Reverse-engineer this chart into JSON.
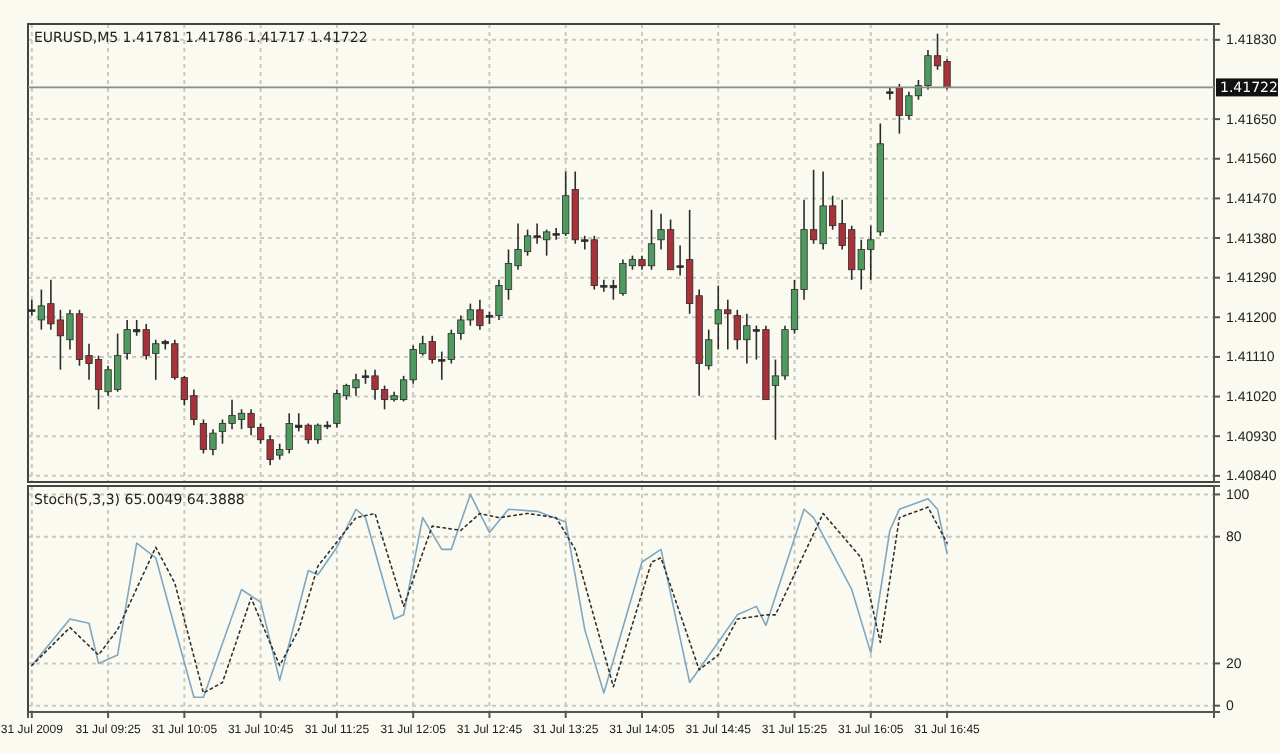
{
  "chart_data": [
    {
      "type": "candlestick",
      "title": "EURUSD,M5 1.41781 1.41786 1.41717 1.41722",
      "grid": true,
      "tick_labels": "y",
      "xlim": [
        "2009-07-31T08:43",
        "2009-07-31T19:05"
      ],
      "xticks": [
        {
          "value": "2009-07-31T08:45",
          "label": null
        },
        {
          "value": "2009-07-31T09:25",
          "label": null
        },
        {
          "value": "2009-07-31T10:05",
          "label": null
        },
        {
          "value": "2009-07-31T10:45",
          "label": null
        },
        {
          "value": "2009-07-31T11:25",
          "label": null
        },
        {
          "value": "2009-07-31T12:05",
          "label": null
        },
        {
          "value": "2009-07-31T12:45",
          "label": null
        },
        {
          "value": "2009-07-31T13:25",
          "label": null
        },
        {
          "value": "2009-07-31T14:05",
          "label": null
        },
        {
          "value": "2009-07-31T14:45",
          "label": null
        },
        {
          "value": "2009-07-31T15:25",
          "label": null
        },
        {
          "value": "2009-07-31T16:05",
          "label": null
        },
        {
          "value": "2009-07-31T16:45",
          "label": null
        }
      ],
      "ylim": [
        1.40826,
        1.41866
      ],
      "yticks": [
        {
          "value": 1.4183,
          "label": "1.41830"
        },
        {
          "value": 1.4165,
          "label": "1.41650"
        },
        {
          "value": 1.4156,
          "label": "1.41560"
        },
        {
          "value": 1.4147,
          "label": "1.41470"
        },
        {
          "value": 1.4138,
          "label": "1.41380"
        },
        {
          "value": 1.4129,
          "label": "1.41290"
        },
        {
          "value": 1.412,
          "label": "1.41200"
        },
        {
          "value": 1.4111,
          "label": "1.41110"
        },
        {
          "value": 1.4102,
          "label": "1.41020"
        },
        {
          "value": 1.4093,
          "label": "1.40930"
        },
        {
          "value": 1.4084,
          "label": "1.40840"
        }
      ],
      "ref_lines": [
        {
          "axis": "y",
          "value": 1.41722,
          "label": "1.41722",
          "color": "#8c8c8c"
        }
      ],
      "x": [
        "2009-07-31T08:45",
        "2009-07-31T08:50",
        "2009-07-31T08:55",
        "2009-07-31T09:00",
        "2009-07-31T09:05",
        "2009-07-31T09:10",
        "2009-07-31T09:15",
        "2009-07-31T09:20",
        "2009-07-31T09:25",
        "2009-07-31T09:30",
        "2009-07-31T09:35",
        "2009-07-31T09:40",
        "2009-07-31T09:45",
        "2009-07-31T09:50",
        "2009-07-31T09:55",
        "2009-07-31T10:00",
        "2009-07-31T10:05",
        "2009-07-31T10:10",
        "2009-07-31T10:15",
        "2009-07-31T10:20",
        "2009-07-31T10:25",
        "2009-07-31T10:30",
        "2009-07-31T10:35",
        "2009-07-31T10:40",
        "2009-07-31T10:45",
        "2009-07-31T10:50",
        "2009-07-31T10:55",
        "2009-07-31T11:00",
        "2009-07-31T11:05",
        "2009-07-31T11:10",
        "2009-07-31T11:15",
        "2009-07-31T11:20",
        "2009-07-31T11:25",
        "2009-07-31T11:30",
        "2009-07-31T11:35",
        "2009-07-31T11:40",
        "2009-07-31T11:45",
        "2009-07-31T11:50",
        "2009-07-31T11:55",
        "2009-07-31T12:00",
        "2009-07-31T12:05",
        "2009-07-31T12:10",
        "2009-07-31T12:15",
        "2009-07-31T12:20",
        "2009-07-31T12:25",
        "2009-07-31T12:30",
        "2009-07-31T12:35",
        "2009-07-31T12:40",
        "2009-07-31T12:45",
        "2009-07-31T12:50",
        "2009-07-31T12:55",
        "2009-07-31T13:00",
        "2009-07-31T13:05",
        "2009-07-31T13:10",
        "2009-07-31T13:15",
        "2009-07-31T13:20",
        "2009-07-31T13:25",
        "2009-07-31T13:30",
        "2009-07-31T13:35",
        "2009-07-31T13:40",
        "2009-07-31T13:45",
        "2009-07-31T13:50",
        "2009-07-31T13:55",
        "2009-07-31T14:00",
        "2009-07-31T14:05",
        "2009-07-31T14:10",
        "2009-07-31T14:15",
        "2009-07-31T14:20",
        "2009-07-31T14:25",
        "2009-07-31T14:30",
        "2009-07-31T14:35",
        "2009-07-31T14:40",
        "2009-07-31T14:45",
        "2009-07-31T14:50",
        "2009-07-31T14:55",
        "2009-07-31T15:00",
        "2009-07-31T15:05",
        "2009-07-31T15:10",
        "2009-07-31T15:15",
        "2009-07-31T15:20",
        "2009-07-31T15:25",
        "2009-07-31T15:30",
        "2009-07-31T15:35",
        "2009-07-31T15:40",
        "2009-07-31T15:45",
        "2009-07-31T15:50",
        "2009-07-31T15:55",
        "2009-07-31T16:00",
        "2009-07-31T16:05",
        "2009-07-31T16:10",
        "2009-07-31T16:15",
        "2009-07-31T16:20",
        "2009-07-31T16:25",
        "2009-07-31T16:30",
        "2009-07-31T16:35",
        "2009-07-31T16:40",
        "2009-07-31T16:45"
      ],
      "ohlc": [
        [
          1.41217,
          1.4124,
          1.41204,
          1.41217
        ],
        [
          1.41194,
          1.41263,
          1.41172,
          1.41226
        ],
        [
          1.41231,
          1.41285,
          1.41172,
          1.41185
        ],
        [
          1.41194,
          1.41217,
          1.41081,
          1.41158
        ],
        [
          1.41149,
          1.41217,
          1.41127,
          1.41208
        ],
        [
          1.41208,
          1.41217,
          1.4109,
          1.41104
        ],
        [
          1.41113,
          1.4114,
          1.41058,
          1.41095
        ],
        [
          1.41104,
          1.41113,
          1.40991,
          1.41036
        ],
        [
          1.41031,
          1.4109,
          1.41022,
          1.41081
        ],
        [
          1.41036,
          1.41163,
          1.41031,
          1.41113
        ],
        [
          1.41118,
          1.41194,
          1.41104,
          1.41172
        ],
        [
          1.41172,
          1.41194,
          1.41158,
          1.41167
        ],
        [
          1.41172,
          1.41185,
          1.41104,
          1.41113
        ],
        [
          1.41118,
          1.41149,
          1.41058,
          1.4114
        ],
        [
          1.41145,
          1.41149,
          1.41127,
          1.4114
        ],
        [
          1.4114,
          1.41149,
          1.41058,
          1.41063
        ],
        [
          1.41063,
          1.41067,
          1.41,
          1.41013
        ],
        [
          1.41022,
          1.41036,
          1.40955,
          1.40968
        ],
        [
          1.40959,
          1.40968,
          1.40891,
          1.409
        ],
        [
          1.409,
          1.40946,
          1.40887,
          1.40937
        ],
        [
          1.40941,
          1.40968,
          1.40913,
          1.40959
        ],
        [
          1.40959,
          1.41013,
          1.40946,
          1.40977
        ],
        [
          1.40968,
          1.40991,
          1.40946,
          1.40982
        ],
        [
          1.40982,
          1.40991,
          1.40932,
          1.4095
        ],
        [
          1.4095,
          1.40959,
          1.40913,
          1.40922
        ],
        [
          1.40922,
          1.40932,
          1.40864,
          1.40877
        ],
        [
          1.40887,
          1.40913,
          1.40877,
          1.409
        ],
        [
          1.409,
          1.40982,
          1.40891,
          1.40959
        ],
        [
          1.40955,
          1.40982,
          1.40941,
          1.4095
        ],
        [
          1.40955,
          1.40959,
          1.40913,
          1.40922
        ],
        [
          1.40922,
          1.40959,
          1.40913,
          1.40955
        ],
        [
          1.40955,
          1.40964,
          1.40946,
          1.40955
        ],
        [
          1.40959,
          1.41036,
          1.4095,
          1.41027
        ],
        [
          1.41022,
          1.41049,
          1.41013,
          1.41045
        ],
        [
          1.4104,
          1.41072,
          1.41022,
          1.41058
        ],
        [
          1.41063,
          1.41081,
          1.41049,
          1.41067
        ],
        [
          1.41067,
          1.41081,
          1.41013,
          1.41036
        ],
        [
          1.41036,
          1.41045,
          1.40991,
          1.41013
        ],
        [
          1.41013,
          1.41031,
          1.41009,
          1.41022
        ],
        [
          1.41013,
          1.41067,
          1.41009,
          1.41058
        ],
        [
          1.41058,
          1.41136,
          1.41049,
          1.41127
        ],
        [
          1.41118,
          1.41158,
          1.41113,
          1.4114
        ],
        [
          1.41145,
          1.41158,
          1.41095,
          1.41104
        ],
        [
          1.41104,
          1.41122,
          1.41058,
          1.41104
        ],
        [
          1.41104,
          1.41172,
          1.41095,
          1.41163
        ],
        [
          1.41163,
          1.41204,
          1.41149,
          1.41194
        ],
        [
          1.41194,
          1.41231,
          1.41181,
          1.41217
        ],
        [
          1.41217,
          1.4124,
          1.41172,
          1.41181
        ],
        [
          1.41204,
          1.41213,
          1.41185,
          1.41204
        ],
        [
          1.41204,
          1.41285,
          1.41194,
          1.41272
        ],
        [
          1.41263,
          1.41354,
          1.4124,
          1.41322
        ],
        [
          1.41317,
          1.41413,
          1.41308,
          1.41354
        ],
        [
          1.41349,
          1.41399,
          1.4134,
          1.41385
        ],
        [
          1.41385,
          1.41413,
          1.41367,
          1.41385
        ],
        [
          1.41376,
          1.41399,
          1.4134,
          1.41394
        ],
        [
          1.4139,
          1.41403,
          1.41376,
          1.4139
        ],
        [
          1.4139,
          1.41531,
          1.41385,
          1.41476
        ],
        [
          1.4149,
          1.41531,
          1.41367,
          1.41376
        ],
        [
          1.41376,
          1.41385,
          1.41354,
          1.41376
        ],
        [
          1.41376,
          1.41385,
          1.41263,
          1.41272
        ],
        [
          1.41272,
          1.41285,
          1.41258,
          1.41272
        ],
        [
          1.41272,
          1.41285,
          1.4124,
          1.41267
        ],
        [
          1.41254,
          1.41331,
          1.41249,
          1.41322
        ],
        [
          1.41317,
          1.4134,
          1.41308,
          1.41331
        ],
        [
          1.41331,
          1.4134,
          1.41308,
          1.41317
        ],
        [
          1.41317,
          1.41444,
          1.41308,
          1.41367
        ],
        [
          1.41376,
          1.41435,
          1.41354,
          1.41399
        ],
        [
          1.41399,
          1.41422,
          1.41308,
          1.41308
        ],
        [
          1.41317,
          1.41363,
          1.41295,
          1.41317
        ],
        [
          1.41331,
          1.41444,
          1.41208,
          1.41231
        ],
        [
          1.41249,
          1.41263,
          1.41022,
          1.41095
        ],
        [
          1.4109,
          1.41172,
          1.41081,
          1.41149
        ],
        [
          1.41185,
          1.41272,
          1.41127,
          1.41217
        ],
        [
          1.41217,
          1.4124,
          1.41127,
          1.41208
        ],
        [
          1.41204,
          1.41217,
          1.41127,
          1.41149
        ],
        [
          1.41149,
          1.41208,
          1.41095,
          1.41181
        ],
        [
          1.41172,
          1.41181,
          1.41104,
          1.41172
        ],
        [
          1.41172,
          1.41181,
          1.41013,
          1.41013
        ],
        [
          1.41045,
          1.41104,
          1.40922,
          1.41067
        ],
        [
          1.41067,
          1.41181,
          1.41058,
          1.41172
        ],
        [
          1.41172,
          1.41285,
          1.41163,
          1.41263
        ],
        [
          1.41263,
          1.41467,
          1.4124,
          1.41399
        ],
        [
          1.41399,
          1.41535,
          1.41367,
          1.41376
        ],
        [
          1.41367,
          1.41531,
          1.41354,
          1.41453
        ],
        [
          1.41453,
          1.41476,
          1.41399,
          1.41408
        ],
        [
          1.41413,
          1.41467,
          1.41354,
          1.41363
        ],
        [
          1.41399,
          1.41408,
          1.41285,
          1.41308
        ],
        [
          1.41308,
          1.41376,
          1.41263,
          1.41354
        ],
        [
          1.41354,
          1.41408,
          1.41285,
          1.41376
        ],
        [
          1.41394,
          1.4164,
          1.41385,
          1.41594
        ],
        [
          1.41712,
          1.41721,
          1.41694,
          1.41712
        ],
        [
          1.41721,
          1.4173,
          1.41617,
          1.41658
        ],
        [
          1.41658,
          1.41712,
          1.41649,
          1.41703
        ],
        [
          1.41703,
          1.41739,
          1.41694,
          1.41726
        ],
        [
          1.41726,
          1.41807,
          1.41717,
          1.41794
        ],
        [
          1.41794,
          1.41844,
          1.41762,
          1.41771
        ],
        [
          1.41781,
          1.41786,
          1.41717,
          1.41722
        ]
      ],
      "colors": [
        "#2b2b2b",
        "#4f9a5f",
        "#a8323a",
        "#a8323a",
        "#4f9a5f",
        "#a8323a",
        "#a8323a",
        "#a8323a",
        "#4f9a5f",
        "#4f9a5f",
        "#4f9a5f",
        "#2b2b2b",
        "#a8323a",
        "#4f9a5f",
        "#2b2b2b",
        "#a8323a",
        "#a8323a",
        "#a8323a",
        "#a8323a",
        "#4f9a5f",
        "#4f9a5f",
        "#4f9a5f",
        "#4f9a5f",
        "#a8323a",
        "#a8323a",
        "#a8323a",
        "#4f9a5f",
        "#4f9a5f",
        "#2b2b2b",
        "#a8323a",
        "#4f9a5f",
        "#2b2b2b",
        "#4f9a5f",
        "#4f9a5f",
        "#4f9a5f",
        "#2b2b2b",
        "#a8323a",
        "#a8323a",
        "#4f9a5f",
        "#4f9a5f",
        "#4f9a5f",
        "#4f9a5f",
        "#a8323a",
        "#2b2b2b",
        "#4f9a5f",
        "#4f9a5f",
        "#4f9a5f",
        "#a8323a",
        "#2b2b2b",
        "#4f9a5f",
        "#4f9a5f",
        "#4f9a5f",
        "#4f9a5f",
        "#2b2b2b",
        "#4f9a5f",
        "#2b2b2b",
        "#4f9a5f",
        "#a8323a",
        "#2b2b2b",
        "#a8323a",
        "#2b2b2b",
        "#2b2b2b",
        "#4f9a5f",
        "#4f9a5f",
        "#a8323a",
        "#4f9a5f",
        "#4f9a5f",
        "#a8323a",
        "#2b2b2b",
        "#a8323a",
        "#a8323a",
        "#4f9a5f",
        "#4f9a5f",
        "#a8323a",
        "#a8323a",
        "#4f9a5f",
        "#2b2b2b",
        "#a8323a",
        "#4f9a5f",
        "#4f9a5f",
        "#4f9a5f",
        "#4f9a5f",
        "#a8323a",
        "#4f9a5f",
        "#a8323a",
        "#a8323a",
        "#a8323a",
        "#4f9a5f",
        "#4f9a5f",
        "#4f9a5f",
        "#2b2b2b",
        "#a8323a",
        "#4f9a5f",
        "#4f9a5f",
        "#4f9a5f",
        "#a8323a",
        "#a8323a"
      ]
    },
    {
      "type": "line",
      "title": "Stoch(5,3,3) 65.0049 64.3888",
      "grid": true,
      "xlim": [
        "2009-07-31T08:43",
        "2009-07-31T19:05"
      ],
      "xticks": [
        {
          "value": "2009-07-31T08:45",
          "label": "31 Jul 2009"
        },
        {
          "value": "2009-07-31T09:25",
          "label": "31 Jul 09:25"
        },
        {
          "value": "2009-07-31T10:05",
          "label": "31 Jul 10:05"
        },
        {
          "value": "2009-07-31T10:45",
          "label": "31 Jul 10:45"
        },
        {
          "value": "2009-07-31T11:25",
          "label": "31 Jul 11:25"
        },
        {
          "value": "2009-07-31T12:05",
          "label": "31 Jul 12:05"
        },
        {
          "value": "2009-07-31T12:45",
          "label": "31 Jul 12:45"
        },
        {
          "value": "2009-07-31T13:25",
          "label": "31 Jul 13:25"
        },
        {
          "value": "2009-07-31T14:05",
          "label": "31 Jul 14:05"
        },
        {
          "value": "2009-07-31T14:45",
          "label": "31 Jul 14:45"
        },
        {
          "value": "2009-07-31T15:25",
          "label": "31 Jul 15:25"
        },
        {
          "value": "2009-07-31T16:05",
          "label": "31 Jul 16:05"
        },
        {
          "value": "2009-07-31T16:45",
          "label": "31 Jul 16:45"
        }
      ],
      "ylim": [
        -3,
        104
      ],
      "yticks": [
        0,
        20,
        80,
        100
      ],
      "series": [
        {
          "color": "#7fa7c0",
          "line_style": "solid",
          "x": [
            "2009-07-31T08:45",
            "2009-07-31T09:05",
            "2009-07-31T09:15",
            "2009-07-31T09:20",
            "2009-07-31T09:30",
            "2009-07-31T09:40",
            "2009-07-31T09:50",
            "2009-07-31T10:10",
            "2009-07-31T10:15",
            "2009-07-31T10:35",
            "2009-07-31T10:45",
            "2009-07-31T10:55",
            "2009-07-31T11:10",
            "2009-07-31T11:15",
            "2009-07-31T11:25",
            "2009-07-31T11:35",
            "2009-07-31T11:40",
            "2009-07-31T11:55",
            "2009-07-31T12:00",
            "2009-07-31T12:10",
            "2009-07-31T12:20",
            "2009-07-31T12:25",
            "2009-07-31T12:35",
            "2009-07-31T12:45",
            "2009-07-31T12:55",
            "2009-07-31T13:10",
            "2009-07-31T13:25",
            "2009-07-31T13:35",
            "2009-07-31T13:45",
            "2009-07-31T14:05",
            "2009-07-31T14:15",
            "2009-07-31T14:30",
            "2009-07-31T14:45",
            "2009-07-31T14:55",
            "2009-07-31T15:05",
            "2009-07-31T15:10",
            "2009-07-31T15:30",
            "2009-07-31T15:35",
            "2009-07-31T15:55",
            "2009-07-31T16:05",
            "2009-07-31T16:15",
            "2009-07-31T16:20",
            "2009-07-31T16:35",
            "2009-07-31T16:40",
            "2009-07-31T16:45"
          ],
          "values": [
            19,
            41,
            39,
            20,
            24,
            77,
            70,
            4,
            4,
            55,
            49,
            12,
            64,
            62,
            75,
            93,
            89,
            41,
            43,
            89,
            74,
            74,
            100,
            82,
            93,
            92,
            87,
            36,
            6,
            68,
            74,
            11,
            30,
            43,
            47,
            38,
            93,
            89,
            55,
            25,
            83,
            93,
            98,
            93,
            72
          ]
        },
        {
          "color": "#303030",
          "line_style": "dotted",
          "x": [
            "2009-07-31T08:45",
            "2009-07-31T09:05",
            "2009-07-31T09:20",
            "2009-07-31T09:30",
            "2009-07-31T09:50",
            "2009-07-31T10:00",
            "2009-07-31T10:15",
            "2009-07-31T10:25",
            "2009-07-31T10:40",
            "2009-07-31T10:55",
            "2009-07-31T11:05",
            "2009-07-31T11:15",
            "2009-07-31T11:35",
            "2009-07-31T11:45",
            "2009-07-31T12:00",
            "2009-07-31T12:15",
            "2009-07-31T12:30",
            "2009-07-31T12:40",
            "2009-07-31T12:50",
            "2009-07-31T13:05",
            "2009-07-31T13:20",
            "2009-07-31T13:30",
            "2009-07-31T13:50",
            "2009-07-31T14:10",
            "2009-07-31T14:15",
            "2009-07-31T14:35",
            "2009-07-31T14:45",
            "2009-07-31T14:55",
            "2009-07-31T15:10",
            "2009-07-31T15:15",
            "2009-07-31T15:40",
            "2009-07-31T16:00",
            "2009-07-31T16:10",
            "2009-07-31T16:20",
            "2009-07-31T16:35",
            "2009-07-31T16:45"
          ],
          "values": [
            19,
            37,
            24,
            36,
            75,
            58,
            6,
            11,
            51,
            19,
            36,
            66,
            89,
            91,
            47,
            85,
            83,
            91,
            89,
            91,
            89,
            74,
            9,
            68,
            70,
            17,
            24,
            41,
            43,
            43,
            91,
            70,
            30,
            89,
            94,
            77
          ]
        }
      ]
    }
  ]
}
